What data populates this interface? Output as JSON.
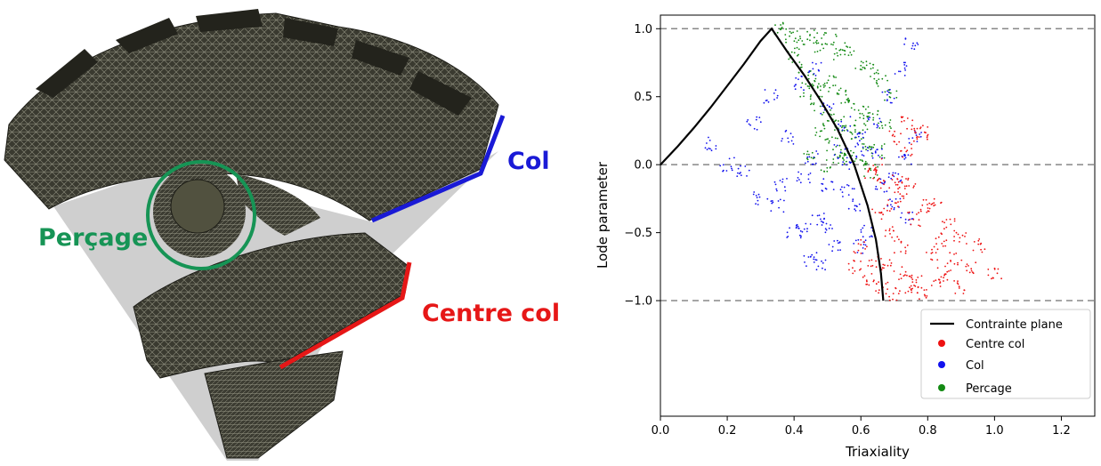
{
  "mesh": {
    "labels": {
      "col": "Col",
      "percage": "Perçage",
      "centre_col": "Centre col"
    },
    "colors": {
      "col": "#1a1ad6",
      "percage": "#169455",
      "centre_col": "#e61717"
    }
  },
  "chart_data": {
    "type": "scatter",
    "xlabel": "Triaxiality",
    "ylabel": "Lode parameter",
    "xlim": [
      0.0,
      1.3
    ],
    "ylim": [
      -1.85,
      1.1
    ],
    "x_ticks": [
      0.0,
      0.2,
      0.4,
      0.6,
      0.8,
      1.0,
      1.2
    ],
    "x_tick_labels": [
      "0.0",
      "0.2",
      "0.4",
      "0.6",
      "0.8",
      "1.0",
      "1.2"
    ],
    "y_ticks": [
      1.0,
      0.5,
      0.0,
      -0.5,
      -1.0
    ],
    "y_tick_labels": [
      "1.0",
      "0.5",
      "0.0",
      "−0.5",
      "−1.0"
    ],
    "reference_lines_y": [
      1.0,
      0.0,
      -1.0
    ],
    "grid": false,
    "legend_position": "lower-right",
    "curve": {
      "name": "Contrainte plane",
      "color": "#000000",
      "x": [
        0.0,
        0.05,
        0.1,
        0.15,
        0.2,
        0.25,
        0.3,
        0.333,
        0.38,
        0.43,
        0.48,
        0.53,
        0.58,
        0.62,
        0.645,
        0.66,
        0.667
      ],
      "y": [
        0.0,
        0.13,
        0.27,
        0.42,
        0.58,
        0.74,
        0.91,
        1.0,
        0.83,
        0.66,
        0.47,
        0.26,
        0.0,
        -0.3,
        -0.55,
        -0.8,
        -1.0
      ]
    },
    "series": [
      {
        "name": "Centre col",
        "color": "#ee1111",
        "x": [
          0.63,
          0.67,
          0.71,
          0.74,
          0.78,
          0.82,
          0.86,
          0.9,
          0.95,
          1.0,
          0.65,
          0.69,
          0.72,
          0.76,
          0.8,
          0.84,
          0.88,
          0.93,
          0.6,
          0.64,
          0.68,
          0.73,
          0.77,
          0.81,
          0.85,
          0.9,
          0.58,
          0.62,
          0.66,
          0.7,
          0.75,
          0.79,
          0.83,
          0.66,
          0.7,
          0.74,
          0.78,
          0.72,
          0.75,
          0.7
        ],
        "y": [
          -0.05,
          -0.15,
          -0.1,
          0.1,
          0.2,
          -0.3,
          -0.45,
          -0.55,
          -0.6,
          -0.8,
          -0.35,
          -0.5,
          -0.6,
          -0.4,
          -0.3,
          -0.55,
          -0.7,
          -0.75,
          -0.6,
          -0.7,
          -0.75,
          -0.8,
          -0.85,
          -0.65,
          -0.8,
          -0.9,
          -0.75,
          -0.85,
          -0.9,
          -0.95,
          -0.9,
          -0.95,
          -0.85,
          0.0,
          0.2,
          0.3,
          0.25,
          -0.2,
          -0.15,
          -0.3
        ]
      },
      {
        "name": "Col",
        "color": "#1111ee",
        "x": [
          0.15,
          0.2,
          0.28,
          0.33,
          0.38,
          0.43,
          0.47,
          0.52,
          0.56,
          0.6,
          0.64,
          0.68,
          0.72,
          0.75,
          0.25,
          0.3,
          0.35,
          0.4,
          0.45,
          0.5,
          0.55,
          0.6,
          0.65,
          0.7,
          0.73,
          0.76,
          0.42,
          0.46,
          0.5,
          0.54,
          0.58,
          0.62,
          0.66,
          0.7,
          0.74,
          0.45,
          0.5,
          0.55,
          0.6,
          0.36,
          0.42,
          0.48
        ],
        "y": [
          0.15,
          0.0,
          0.3,
          0.5,
          0.2,
          -0.1,
          -0.4,
          -0.6,
          -0.2,
          0.1,
          0.3,
          0.5,
          0.7,
          0.9,
          -0.05,
          -0.25,
          -0.3,
          -0.5,
          -0.7,
          -0.45,
          0.0,
          0.2,
          0.1,
          -0.1,
          0.05,
          0.2,
          0.6,
          0.7,
          0.4,
          0.1,
          -0.3,
          -0.5,
          -0.15,
          -0.3,
          -0.4,
          0.05,
          -0.15,
          0.3,
          -0.6,
          -0.15,
          -0.45,
          -0.75
        ]
      },
      {
        "name": "Percage",
        "color": "#138a13",
        "x": [
          0.36,
          0.39,
          0.42,
          0.45,
          0.48,
          0.51,
          0.54,
          0.57,
          0.6,
          0.63,
          0.66,
          0.69,
          0.4,
          0.43,
          0.46,
          0.49,
          0.52,
          0.55,
          0.58,
          0.61,
          0.64,
          0.67,
          0.44,
          0.47,
          0.5,
          0.53,
          0.56,
          0.59,
          0.62,
          0.65,
          0.48,
          0.51,
          0.54,
          0.57,
          0.6,
          0.63,
          0.45,
          0.5,
          0.55,
          0.6
        ],
        "y": [
          1.0,
          0.95,
          0.9,
          0.95,
          0.88,
          0.92,
          0.8,
          0.85,
          0.75,
          0.7,
          0.62,
          0.5,
          0.8,
          0.7,
          0.62,
          0.55,
          0.6,
          0.5,
          0.45,
          0.4,
          0.35,
          0.3,
          0.55,
          0.45,
          0.35,
          0.3,
          0.25,
          0.2,
          0.15,
          0.1,
          0.25,
          0.15,
          0.1,
          0.05,
          0.0,
          -0.05,
          0.05,
          0.0,
          0.05,
          0.3
        ]
      }
    ]
  }
}
